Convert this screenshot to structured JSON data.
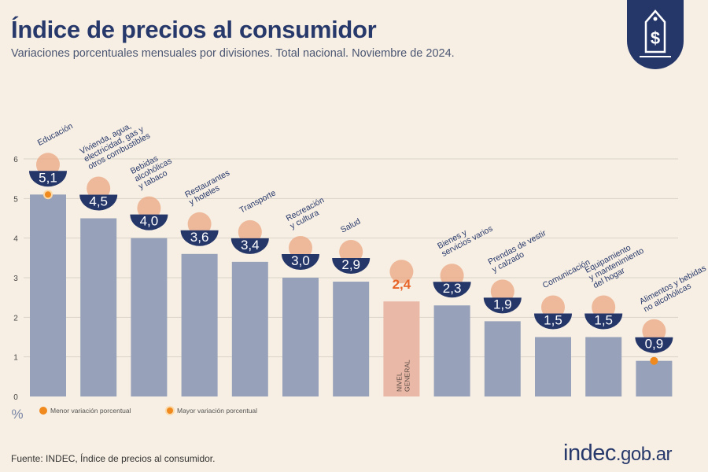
{
  "header": {
    "title": "Índice de precios al consumidor",
    "subtitle": "Variaciones porcentuales mensuales por divisiones. Total nacional. Noviembre de 2024."
  },
  "footer": {
    "source": "Fuente: INDEC, Índice de precios al consumidor.",
    "brand_main": "indec",
    "brand_domain": ".gob.ar"
  },
  "colors": {
    "bar": "#97a2ba",
    "highlight_bar": "#e9b8a6",
    "badge": "#253669",
    "accent": "#f08a1e",
    "title": "#27386b"
  },
  "chart_data": {
    "type": "bar",
    "categories": [
      "Educación",
      "Vivienda, agua,\nelectricidad, gas y\notros combustibles",
      "Bebidas\nalcohólicas\ny tabaco",
      "Restaurantes\ny hoteles",
      "Transporte",
      "Recreación\ny cultura",
      "Salud",
      "NIVEL\nGENERAL",
      "Bienes y\nservicios varios",
      "Prendas de vestir\ny calzado",
      "Comunicación",
      "Equipamiento\ny mantenimiento\ndel hogar",
      "Alimentos y bebidas\nno alcohólicas"
    ],
    "values": [
      5.1,
      4.5,
      4.0,
      3.6,
      3.4,
      3.0,
      2.9,
      2.4,
      2.3,
      1.9,
      1.5,
      1.5,
      0.9
    ],
    "value_labels": [
      "5,1",
      "4,5",
      "4,0",
      "3,6",
      "3,4",
      "3,0",
      "2,9",
      "2,4",
      "2,3",
      "1,9",
      "1,5",
      "1,5",
      "0,9"
    ],
    "highlight_index": 7,
    "ylabel": "%",
    "ylim": [
      0,
      6
    ],
    "yticks": [
      0,
      1,
      2,
      3,
      4,
      5,
      6
    ],
    "grid": true,
    "legend": [
      {
        "label": "Menor variación porcentual",
        "marker": "solid-dot"
      },
      {
        "label": "Mayor variación porcentual",
        "marker": "ring-dot"
      }
    ],
    "markers": [
      {
        "index": 0,
        "type": "mayor"
      },
      {
        "index": 12,
        "type": "menor"
      }
    ]
  }
}
